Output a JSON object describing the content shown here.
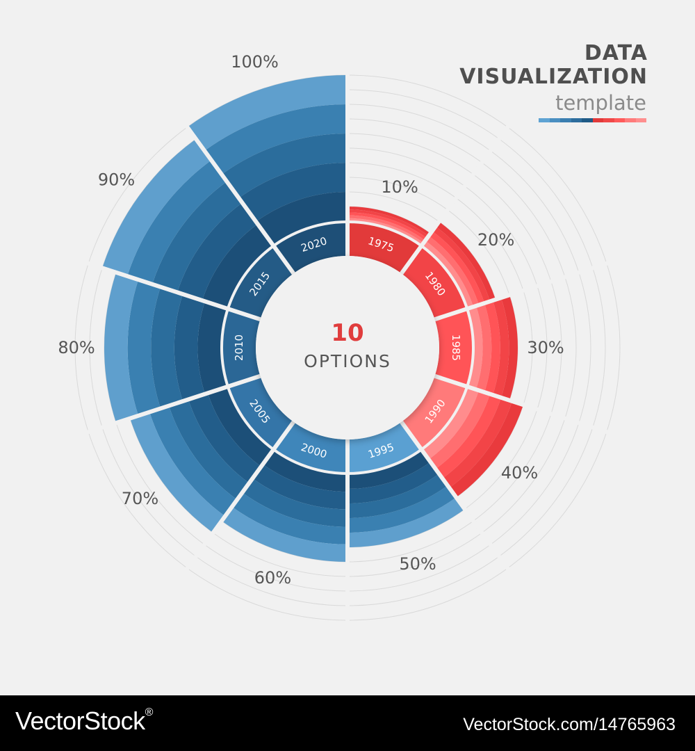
{
  "header": {
    "title_line1": "DATA",
    "title_line2": "VISUALIZATION",
    "subtitle": "template",
    "accent_bar_colors": [
      "#5ea3d3",
      "#4a8fc1",
      "#3a7eb0",
      "#2d6d9d",
      "#1f5a86",
      "#e23a3a",
      "#f04848",
      "#ff5a5a",
      "#ff7b7b",
      "#ff8f8f"
    ]
  },
  "center": {
    "value": "10",
    "label": "OPTIONS"
  },
  "colors": {
    "background": "#f1f1f1",
    "grid": "#d9d9d9",
    "separator": "#f1f1f1",
    "blue": [
      "#1c4f78",
      "#225d8a",
      "#2b6d9c",
      "#3a80b1",
      "#5f9fcd"
    ],
    "red": [
      "#e93a3d",
      "#f24447",
      "#ff5457",
      "#ff6e70",
      "#ff8c8d"
    ],
    "blue_text": "#ffffff",
    "center_value": "#e03d3d",
    "center_label": "#555555",
    "label_text": "#555555"
  },
  "chart_data": {
    "type": "radial-bar",
    "segment_count": 10,
    "max": 100,
    "segments": [
      {
        "year": "1975",
        "percent_label": "10%",
        "value": 10,
        "family": "red"
      },
      {
        "year": "1980",
        "percent_label": "20%",
        "value": 20,
        "family": "red"
      },
      {
        "year": "1985",
        "percent_label": "30%",
        "value": 30,
        "family": "red"
      },
      {
        "year": "1990",
        "percent_label": "40%",
        "value": 40,
        "family": "red"
      },
      {
        "year": "1995",
        "percent_label": "50%",
        "value": 50,
        "family": "blue"
      },
      {
        "year": "2000",
        "percent_label": "60%",
        "value": 60,
        "family": "blue"
      },
      {
        "year": "2005",
        "percent_label": "70%",
        "value": 70,
        "family": "blue"
      },
      {
        "year": "2010",
        "percent_label": "80%",
        "value": 80,
        "family": "blue"
      },
      {
        "year": "2015",
        "percent_label": "90%",
        "value": 90,
        "family": "blue"
      },
      {
        "year": "2020",
        "percent_label": "100%",
        "value": 100,
        "family": "blue"
      }
    ]
  },
  "footer": {
    "brand": "VectorStock",
    "registered": "®",
    "id_text": "VectorStock.com/14765963"
  }
}
